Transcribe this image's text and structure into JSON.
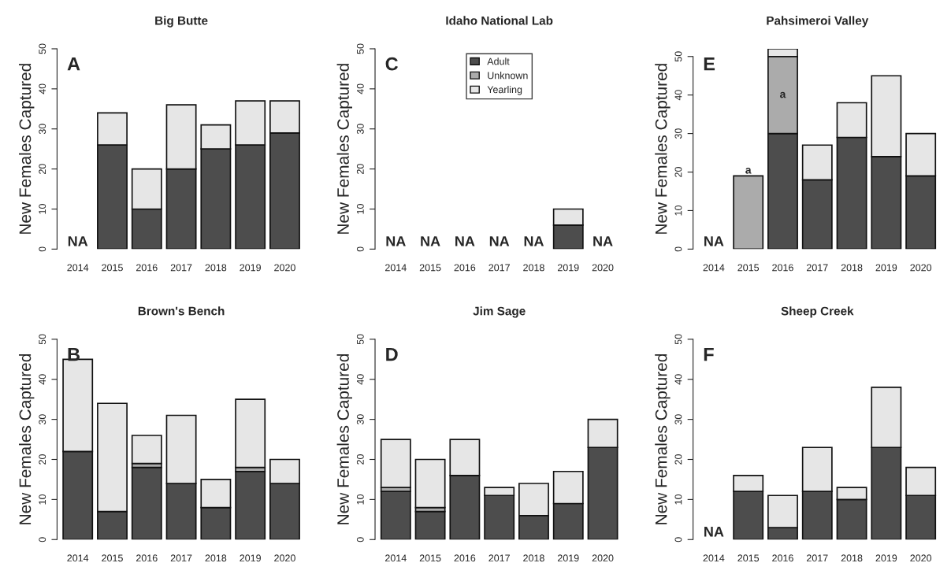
{
  "chart_data": [
    {
      "type": "bar",
      "stacked": true,
      "title": "Big Butte",
      "ylabel": "New Females Captured",
      "categories": [
        "2014",
        "2015",
        "2016",
        "2017",
        "2018",
        "2019",
        "2020"
      ],
      "ylim": [
        0,
        50
      ],
      "yticks": [
        0,
        10,
        20,
        30,
        40,
        50
      ],
      "grid": false,
      "legend": false,
      "series": [
        {
          "color": "#4d4d4d",
          "values": [
            null,
            26,
            10,
            20,
            25,
            26,
            29
          ]
        },
        {
          "color": "#e6e6e6",
          "values": [
            null,
            8,
            10,
            16,
            6,
            11,
            8
          ]
        }
      ],
      "annotations": [
        "A",
        "NA"
      ]
    },
    {
      "type": "bar",
      "stacked": true,
      "title": "Idaho National Lab",
      "ylabel": "New Females Captured",
      "categories": [
        "2014",
        "2015",
        "2016",
        "2017",
        "2018",
        "2019",
        "2020"
      ],
      "ylim": [
        0,
        50
      ],
      "yticks": [
        0,
        10,
        20,
        30,
        40,
        50
      ],
      "grid": false,
      "legend": "top",
      "series": [
        {
          "name": "Adult",
          "color": "#4d4d4d",
          "values": [
            null,
            null,
            null,
            null,
            null,
            6,
            null
          ]
        },
        {
          "name": "Unknown",
          "color": "#ababab",
          "values": [
            null,
            null,
            null,
            null,
            null,
            0,
            null
          ]
        },
        {
          "name": "Yearling",
          "color": "#e6e6e6",
          "values": [
            null,
            null,
            null,
            null,
            null,
            4,
            null
          ]
        }
      ],
      "annotations": [
        "C",
        "NA",
        "NA",
        "NA",
        "NA",
        "NA",
        "NA"
      ]
    },
    {
      "type": "bar",
      "stacked": true,
      "title": "Pahsimeroi Valley",
      "ylabel": "New Females Captured",
      "categories": [
        "2014",
        "2015",
        "2016",
        "2017",
        "2018",
        "2019",
        "2020"
      ],
      "ylim": [
        0,
        52
      ],
      "yticks": [
        0,
        10,
        20,
        30,
        40,
        50
      ],
      "grid": false,
      "legend": false,
      "series": [
        {
          "color": "#4d4d4d",
          "values": [
            null,
            0,
            30,
            18,
            29,
            24,
            19
          ]
        },
        {
          "color": "#ababab",
          "values": [
            null,
            19,
            20,
            0,
            0,
            0,
            0
          ]
        },
        {
          "color": "#e6e6e6",
          "values": [
            null,
            0,
            2,
            9,
            9,
            21,
            11
          ]
        }
      ],
      "annotations": [
        "E",
        "NA",
        {
          "text": "a",
          "x": "2015",
          "y": 19
        },
        "a"
      ]
    },
    {
      "type": "bar",
      "stacked": true,
      "title": "Brown's Bench",
      "ylabel": "New Females Captured",
      "categories": [
        "2014",
        "2015",
        "2016",
        "2017",
        "2018",
        "2019",
        "2020"
      ],
      "ylim": [
        0,
        50
      ],
      "yticks": [
        0,
        10,
        20,
        30,
        40,
        50
      ],
      "grid": false,
      "legend": false,
      "series": [
        {
          "color": "#4d4d4d",
          "values": [
            22,
            7,
            18,
            14,
            8,
            17,
            14
          ]
        },
        {
          "color": "#ababab",
          "values": [
            0,
            0,
            1,
            0,
            0,
            1,
            0
          ]
        },
        {
          "color": "#e6e6e6",
          "values": [
            23,
            27,
            7,
            17,
            7,
            17,
            6
          ]
        }
      ],
      "annotations": [
        "B"
      ]
    },
    {
      "type": "bar",
      "stacked": true,
      "title": "Jim Sage",
      "ylabel": "New Females Captured",
      "categories": [
        "2014",
        "2015",
        "2016",
        "2017",
        "2018",
        "2019",
        "2020"
      ],
      "ylim": [
        0,
        50
      ],
      "yticks": [
        0,
        10,
        20,
        30,
        40,
        50
      ],
      "grid": false,
      "legend": false,
      "series": [
        {
          "color": "#4d4d4d",
          "values": [
            12,
            7,
            16,
            11,
            6,
            9,
            23
          ]
        },
        {
          "color": "#ababab",
          "values": [
            1,
            1,
            0,
            0,
            0,
            0,
            0
          ]
        },
        {
          "color": "#e6e6e6",
          "values": [
            12,
            12,
            9,
            2,
            8,
            8,
            7
          ]
        }
      ],
      "annotations": [
        "D"
      ]
    },
    {
      "type": "bar",
      "stacked": true,
      "title": "Sheep Creek",
      "ylabel": "New Females Captured",
      "categories": [
        "2014",
        "2015",
        "2016",
        "2017",
        "2018",
        "2019",
        "2020"
      ],
      "ylim": [
        0,
        50
      ],
      "yticks": [
        0,
        10,
        20,
        30,
        40,
        50
      ],
      "grid": false,
      "legend": false,
      "series": [
        {
          "color": "#4d4d4d",
          "values": [
            null,
            12,
            3,
            12,
            10,
            23,
            11
          ]
        },
        {
          "color": "#e6e6e6",
          "values": [
            null,
            4,
            8,
            11,
            3,
            15,
            7
          ]
        }
      ],
      "annotations": [
        "F",
        "NA"
      ]
    }
  ]
}
